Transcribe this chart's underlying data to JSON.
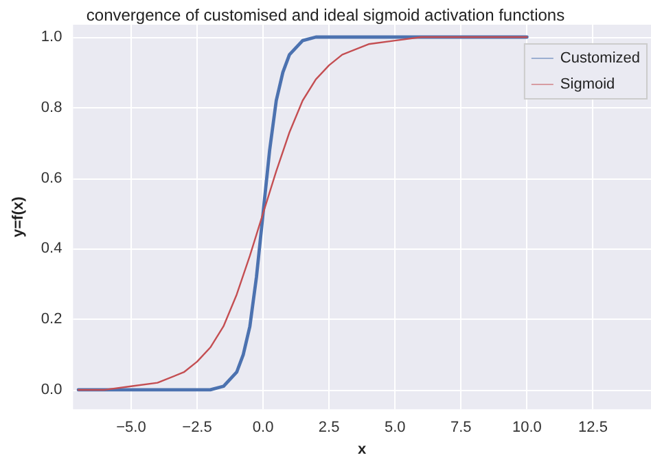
{
  "chart_data": {
    "type": "line",
    "title": "convergence of customised and ideal sigmoid activation functions",
    "xlabel": "x",
    "ylabel": "y=f(x)",
    "xlim": [
      -7.2,
      14.7
    ],
    "xticks": [
      {
        "value": -5,
        "label": "−5.0"
      },
      {
        "value": -2.5,
        "label": "−2.5"
      },
      {
        "value": 0,
        "label": "0.0"
      },
      {
        "value": 2.5,
        "label": "2.5"
      },
      {
        "value": 5,
        "label": "5.0"
      },
      {
        "value": 7.5,
        "label": "7.5"
      },
      {
        "value": 10,
        "label": "10.0"
      },
      {
        "value": 12.5,
        "label": "12.5"
      }
    ],
    "ylim": [
      -0.055,
      1.035
    ],
    "yticks": [
      {
        "value": 0,
        "label": "0.0"
      },
      {
        "value": 0.2,
        "label": "0.2"
      },
      {
        "value": 0.4,
        "label": "0.4"
      },
      {
        "value": 0.6,
        "label": "0.6"
      },
      {
        "value": 0.8,
        "label": "0.8"
      },
      {
        "value": 1,
        "label": "1.0"
      }
    ],
    "grid": true,
    "legend": "top right",
    "marker": "none",
    "line_style": "solid",
    "series": [
      {
        "name": "Customized",
        "color": "#4c72b0",
        "x": [
          -7,
          -5,
          -3,
          -2.5,
          -2,
          -1.5,
          -1,
          -0.75,
          -0.5,
          -0.25,
          0,
          0.25,
          0.5,
          0.75,
          1,
          1.5,
          2,
          2.5,
          3,
          5,
          10
        ],
        "values": [
          0,
          0,
          0,
          0,
          0,
          0.01,
          0.05,
          0.1,
          0.18,
          0.32,
          0.5,
          0.68,
          0.82,
          0.9,
          0.95,
          0.99,
          1,
          1,
          1,
          1,
          1
        ]
      },
      {
        "name": "Sigmoid",
        "color": "#c44e52",
        "x": [
          -7,
          -6,
          -5,
          -4,
          -3,
          -2.5,
          -2,
          -1.5,
          -1,
          -0.5,
          0,
          0.5,
          1,
          1.5,
          2,
          2.5,
          3,
          4,
          5,
          6,
          7,
          8,
          10
        ],
        "values": [
          0,
          0,
          0.01,
          0.02,
          0.05,
          0.08,
          0.12,
          0.18,
          0.27,
          0.38,
          0.5,
          0.62,
          0.73,
          0.82,
          0.88,
          0.92,
          0.95,
          0.98,
          0.99,
          1,
          1,
          1,
          1
        ]
      }
    ]
  }
}
